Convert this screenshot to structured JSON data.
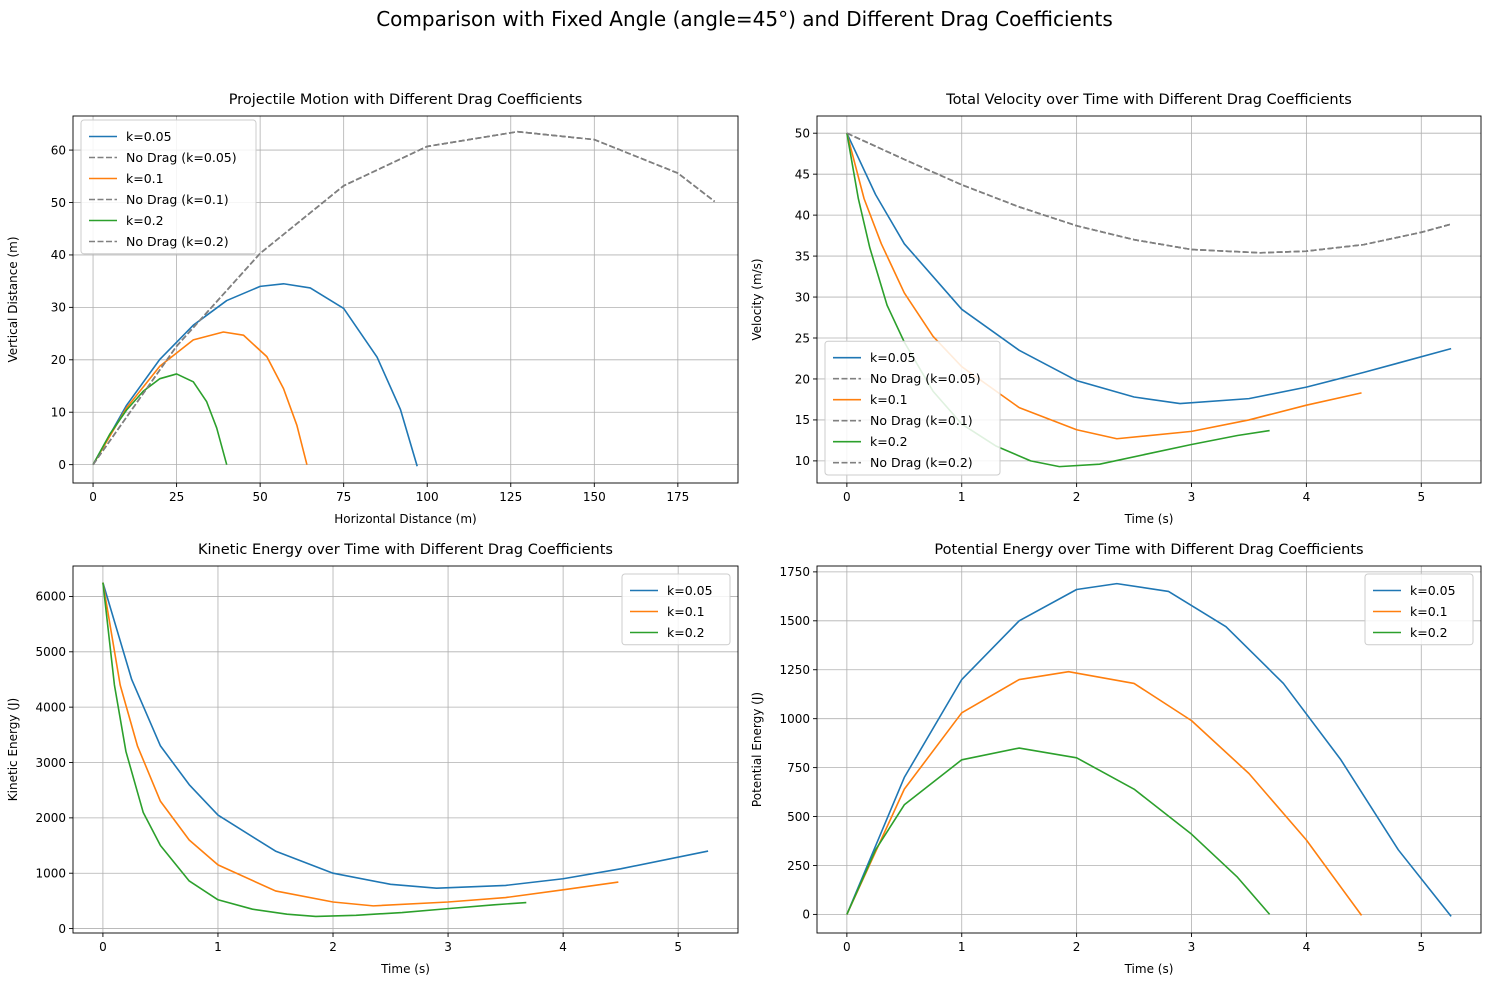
{
  "figure_title": "Comparison with Fixed Angle (angle=45°) and Different Drag Coefficients",
  "colors": {
    "k005": "#1f77b4",
    "k01": "#ff7f0e",
    "k02": "#2ca02c",
    "no_drag": "#808080",
    "grid": "#b0b0b0",
    "axes": "#000000",
    "legend_border": "#cccccc"
  },
  "chart_data": [
    {
      "id": "trajectory",
      "type": "line",
      "title": "Projectile Motion with Different Drag Coefficients",
      "xlabel": "Horizontal Distance (m)",
      "ylabel": "Vertical Distance (m)",
      "xlim": [
        -6,
        193
      ],
      "ylim": [
        -3.5,
        66.5
      ],
      "xticks": [
        0,
        25,
        50,
        75,
        100,
        125,
        150,
        175
      ],
      "yticks": [
        0,
        10,
        20,
        30,
        40,
        50,
        60
      ],
      "grid": true,
      "legend": "upper-left",
      "series": [
        {
          "name": "k=0.05",
          "style": "solid",
          "color_key": "k005",
          "x": [
            0,
            10,
            20,
            30,
            40,
            50,
            57,
            65,
            75,
            85,
            92,
            97
          ],
          "y": [
            0,
            11.3,
            20.1,
            26.6,
            31.3,
            34.0,
            34.5,
            33.7,
            29.8,
            20.5,
            10.5,
            -0.3
          ]
        },
        {
          "name": "No Drag (k=0.05)",
          "style": "dashed",
          "color_key": "no_drag",
          "x": [
            0,
            25,
            50,
            75,
            100,
            127,
            150,
            175,
            186
          ],
          "y": [
            0,
            22.6,
            40.3,
            53.2,
            60.7,
            63.5,
            62.0,
            55.6,
            50.2
          ]
        },
        {
          "name": "k=0.1",
          "style": "solid",
          "color_key": "k01",
          "x": [
            0,
            10,
            20,
            30,
            39,
            45,
            52,
            57,
            61,
            64
          ],
          "y": [
            0,
            10.8,
            18.8,
            23.8,
            25.3,
            24.7,
            20.6,
            14.5,
            7.5,
            0
          ]
        },
        {
          "name": "No Drag (k=0.1)",
          "style": "dashed",
          "color_key": "no_drag",
          "x": [
            0,
            25,
            50,
            75,
            100,
            127,
            150,
            175,
            186
          ],
          "y": [
            0,
            22.6,
            40.3,
            53.2,
            60.7,
            63.5,
            62.0,
            55.6,
            50.2
          ]
        },
        {
          "name": "k=0.2",
          "style": "solid",
          "color_key": "k02",
          "x": [
            0,
            5,
            10,
            15,
            20,
            25,
            30,
            34,
            37,
            40
          ],
          "y": [
            0,
            5.8,
            10.4,
            14.0,
            16.4,
            17.3,
            15.8,
            12.0,
            7.0,
            0
          ]
        },
        {
          "name": "No Drag (k=0.2)",
          "style": "dashed",
          "color_key": "no_drag",
          "x": [
            0,
            25,
            50,
            75,
            100,
            127,
            150,
            175,
            186
          ],
          "y": [
            0,
            22.6,
            40.3,
            53.2,
            60.7,
            63.5,
            62.0,
            55.6,
            50.2
          ]
        }
      ]
    },
    {
      "id": "velocity",
      "type": "line",
      "title": "Total Velocity over Time with Different Drag Coefficients",
      "xlabel": "Time (s)",
      "ylabel": "Velocity (m/s)",
      "xlim": [
        -0.26,
        5.52
      ],
      "ylim": [
        7.3,
        52.1
      ],
      "xticks": [
        0,
        1,
        2,
        3,
        4,
        5
      ],
      "yticks": [
        10,
        15,
        20,
        25,
        30,
        35,
        40,
        45,
        50
      ],
      "grid": true,
      "legend": "lower-left",
      "series": [
        {
          "name": "k=0.05",
          "style": "solid",
          "color_key": "k005",
          "x": [
            0,
            0.25,
            0.5,
            1,
            1.5,
            2,
            2.5,
            2.9,
            3.5,
            4,
            4.5,
            5.26
          ],
          "y": [
            50,
            42.5,
            36.5,
            28.5,
            23.5,
            19.8,
            17.8,
            17.0,
            17.6,
            19.0,
            20.8,
            23.7
          ]
        },
        {
          "name": "No Drag (k=0.05)",
          "style": "dashed",
          "color_key": "no_drag",
          "x": [
            0,
            0.5,
            1,
            1.5,
            2,
            2.5,
            3,
            3.6,
            4,
            4.5,
            5,
            5.26
          ],
          "y": [
            50,
            46.8,
            43.7,
            41.0,
            38.7,
            37.0,
            35.8,
            35.4,
            35.6,
            36.4,
            37.9,
            38.9
          ]
        },
        {
          "name": "k=0.1",
          "style": "solid",
          "color_key": "k01",
          "x": [
            0,
            0.15,
            0.3,
            0.5,
            0.75,
            1,
            1.5,
            2,
            2.35,
            3,
            3.5,
            4,
            4.48
          ],
          "y": [
            50,
            42.0,
            36.5,
            30.5,
            25.2,
            21.5,
            16.5,
            13.8,
            12.7,
            13.6,
            15.0,
            16.8,
            18.3
          ]
        },
        {
          "name": "No Drag (k=0.1)",
          "style": "dashed",
          "color_key": "no_drag",
          "x": [
            0,
            0.5,
            1,
            1.5,
            2,
            2.5,
            3,
            3.6,
            4,
            4.5,
            5,
            5.26
          ],
          "y": [
            50,
            46.8,
            43.7,
            41.0,
            38.7,
            37.0,
            35.8,
            35.4,
            35.6,
            36.4,
            37.9,
            38.9
          ]
        },
        {
          "name": "k=0.2",
          "style": "solid",
          "color_key": "k02",
          "x": [
            0,
            0.1,
            0.2,
            0.35,
            0.5,
            0.75,
            1,
            1.3,
            1.6,
            1.85,
            2.2,
            2.6,
            3,
            3.4,
            3.68
          ],
          "y": [
            50,
            42.0,
            36.0,
            29.0,
            24.5,
            18.5,
            14.5,
            11.8,
            10.0,
            9.3,
            9.6,
            10.8,
            12.0,
            13.1,
            13.7
          ]
        },
        {
          "name": "No Drag (k=0.2)",
          "style": "dashed",
          "color_key": "no_drag",
          "x": [
            0,
            0.5,
            1,
            1.5,
            2,
            2.5,
            3,
            3.6,
            4,
            4.5,
            5,
            5.26
          ],
          "y": [
            50,
            46.8,
            43.7,
            41.0,
            38.7,
            37.0,
            35.8,
            35.4,
            35.6,
            36.4,
            37.9,
            38.9
          ]
        }
      ]
    },
    {
      "id": "kinetic",
      "type": "line",
      "title": "Kinetic Energy over Time with Different Drag Coefficients",
      "xlabel": "Time (s)",
      "ylabel": "Kinetic Energy (J)",
      "xlim": [
        -0.26,
        5.52
      ],
      "ylim": [
        -80,
        6550
      ],
      "xticks": [
        0,
        1,
        2,
        3,
        4,
        5
      ],
      "yticks": [
        0,
        1000,
        2000,
        3000,
        4000,
        5000,
        6000
      ],
      "grid": true,
      "legend": "upper-right",
      "series": [
        {
          "name": "k=0.05",
          "style": "solid",
          "color_key": "k005",
          "x": [
            0,
            0.25,
            0.5,
            0.75,
            1,
            1.5,
            2,
            2.5,
            2.9,
            3.5,
            4,
            4.5,
            5.26
          ],
          "y": [
            6250,
            4500,
            3300,
            2600,
            2050,
            1400,
            1000,
            800,
            730,
            780,
            900,
            1080,
            1400
          ]
        },
        {
          "name": "k=0.1",
          "style": "solid",
          "color_key": "k01",
          "x": [
            0,
            0.15,
            0.3,
            0.5,
            0.75,
            1,
            1.5,
            2,
            2.35,
            3,
            3.5,
            4,
            4.48
          ],
          "y": [
            6250,
            4400,
            3300,
            2300,
            1600,
            1150,
            680,
            480,
            410,
            480,
            560,
            700,
            840
          ]
        },
        {
          "name": "k=0.2",
          "style": "solid",
          "color_key": "k02",
          "x": [
            0,
            0.1,
            0.2,
            0.35,
            0.5,
            0.75,
            1,
            1.3,
            1.6,
            1.85,
            2.2,
            2.6,
            3,
            3.4,
            3.68
          ],
          "y": [
            6250,
            4400,
            3200,
            2100,
            1500,
            860,
            520,
            350,
            260,
            220,
            240,
            290,
            360,
            430,
            470
          ]
        }
      ]
    },
    {
      "id": "potential",
      "type": "line",
      "title": "Potential Energy over Time with Different Drag Coefficients",
      "xlabel": "Time (s)",
      "ylabel": "Potential Energy (J)",
      "xlim": [
        -0.26,
        5.52
      ],
      "ylim": [
        -95,
        1780
      ],
      "xticks": [
        0,
        1,
        2,
        3,
        4,
        5
      ],
      "yticks": [
        0,
        250,
        500,
        750,
        1000,
        1250,
        1500,
        1750
      ],
      "grid": true,
      "legend": "upper-right",
      "series": [
        {
          "name": "k=0.05",
          "style": "solid",
          "color_key": "k005",
          "x": [
            0,
            0.5,
            1,
            1.5,
            2,
            2.35,
            2.8,
            3.3,
            3.8,
            4.3,
            4.8,
            5.26
          ],
          "y": [
            0,
            700,
            1200,
            1500,
            1660,
            1690,
            1650,
            1470,
            1180,
            790,
            330,
            -10
          ]
        },
        {
          "name": "k=0.1",
          "style": "solid",
          "color_key": "k01",
          "x": [
            0,
            0.5,
            1,
            1.5,
            1.93,
            2.5,
            3,
            3.5,
            4,
            4.48
          ],
          "y": [
            0,
            640,
            1030,
            1200,
            1240,
            1180,
            990,
            720,
            380,
            -5
          ]
        },
        {
          "name": "k=0.2",
          "style": "solid",
          "color_key": "k02",
          "x": [
            0,
            0.25,
            0.5,
            1,
            1.5,
            2,
            2.5,
            3,
            3.4,
            3.68
          ],
          "y": [
            0,
            330,
            560,
            790,
            850,
            800,
            640,
            410,
            190,
            0
          ]
        }
      ]
    }
  ]
}
